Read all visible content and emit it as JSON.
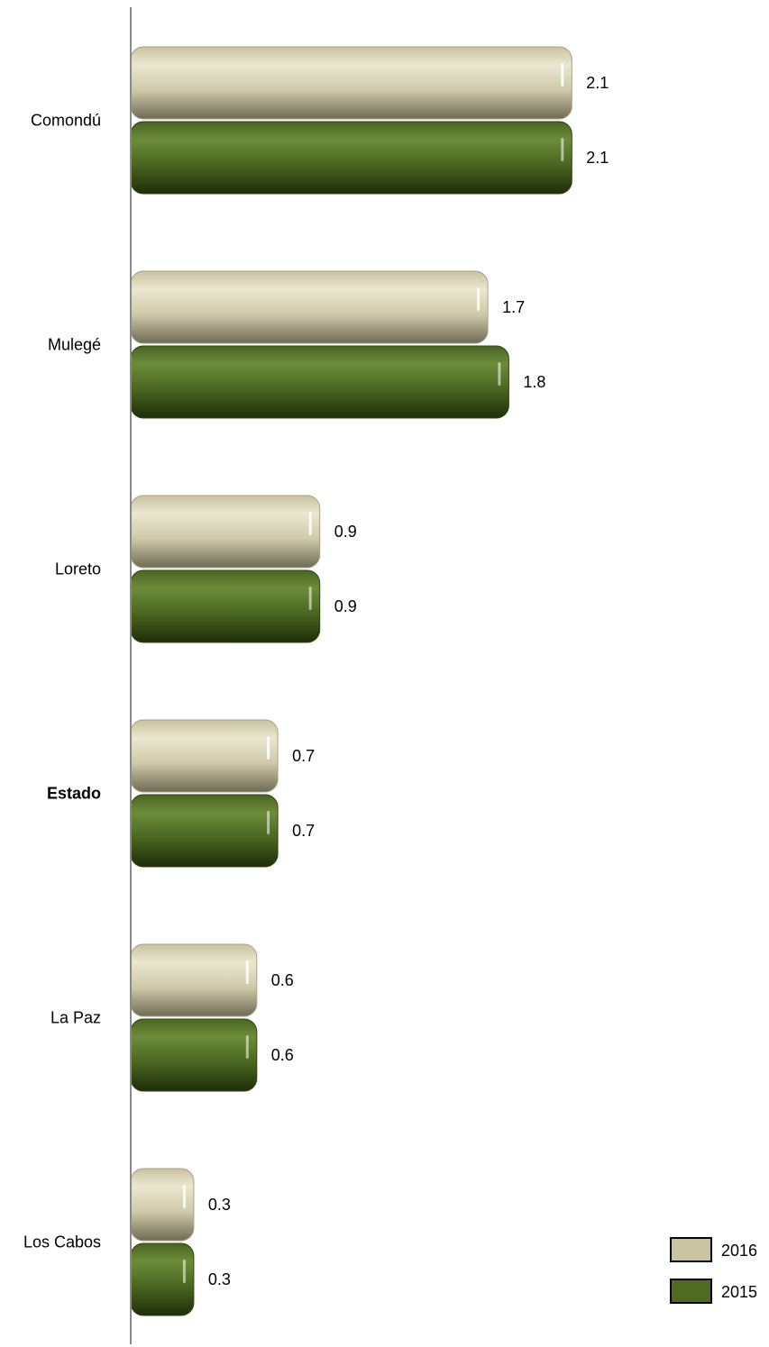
{
  "chart_data": {
    "type": "bar",
    "orientation": "horizontal",
    "categories": [
      "Comondú",
      "Mulegé",
      "Loreto",
      "Estado",
      "La Paz",
      "Los Cabos"
    ],
    "bold_category": "Estado",
    "series": [
      {
        "name": "2016",
        "color": "#c9c3a0",
        "values": [
          2.1,
          1.7,
          0.9,
          0.7,
          0.6,
          0.3
        ]
      },
      {
        "name": "2015",
        "color": "#4f6b23",
        "values": [
          2.1,
          1.8,
          0.9,
          0.7,
          0.6,
          0.3
        ]
      }
    ],
    "value_labels": [
      [
        "2.1",
        "1.7",
        "0.9",
        "0.7",
        "0.6",
        "0.3"
      ],
      [
        "2.1",
        "1.8",
        "0.9",
        "0.7",
        "0.6",
        "0.3"
      ]
    ],
    "xlim": [
      0,
      2.2
    ],
    "grid": false,
    "legend_position": "bottom-right"
  }
}
